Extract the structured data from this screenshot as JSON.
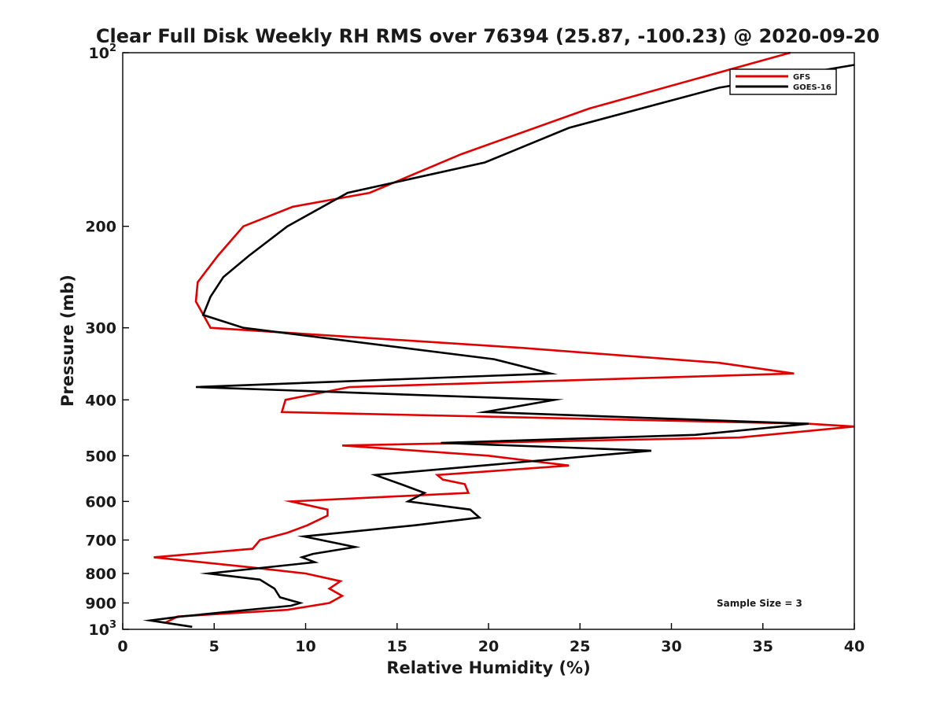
{
  "chart_data": {
    "type": "line",
    "title": "Clear Full Disk Weekly RH RMS over 76394 (25.87, -100.23) @ 2020-09-20",
    "xlabel": "Relative Humidity (%)",
    "ylabel": "Pressure (mb)",
    "xlim": [
      0,
      40
    ],
    "ylim": [
      100,
      1000
    ],
    "y_scale": "log",
    "y_inverted": true,
    "grid": false,
    "legend_position": "top-right",
    "x_ticks": [
      "0",
      "5",
      "10",
      "15",
      "20",
      "25",
      "30",
      "35",
      "40"
    ],
    "y_ticks": [
      {
        "value": 100,
        "label": "10",
        "sup": "2"
      },
      {
        "value": 200,
        "label": "200",
        "sup": ""
      },
      {
        "value": 300,
        "label": "300",
        "sup": ""
      },
      {
        "value": 400,
        "label": "400",
        "sup": ""
      },
      {
        "value": 500,
        "label": "500",
        "sup": ""
      },
      {
        "value": 600,
        "label": "600",
        "sup": ""
      },
      {
        "value": 700,
        "label": "700",
        "sup": ""
      },
      {
        "value": 800,
        "label": "800",
        "sup": ""
      },
      {
        "value": 900,
        "label": "900",
        "sup": ""
      },
      {
        "value": 1000,
        "label": "10",
        "sup": "3"
      }
    ],
    "series": [
      {
        "name": "GFS",
        "color": "#e00000",
        "points": [
          [
            36.5,
            100
          ],
          [
            25.5,
            125
          ],
          [
            18.5,
            150
          ],
          [
            13.5,
            175
          ],
          [
            9.3,
            185
          ],
          [
            6.6,
            200
          ],
          [
            5.2,
            225
          ],
          [
            4.1,
            250
          ],
          [
            4.0,
            270
          ],
          [
            4.8,
            300
          ],
          [
            21.8,
            325
          ],
          [
            32.6,
            345
          ],
          [
            36.7,
            360
          ],
          [
            12.4,
            380
          ],
          [
            8.9,
            400
          ],
          [
            8.7,
            420
          ],
          [
            37.5,
            440
          ],
          [
            40.0,
            445
          ],
          [
            33.7,
            465
          ],
          [
            12.0,
            480
          ],
          [
            20.0,
            500
          ],
          [
            24.4,
            520
          ],
          [
            17.2,
            540
          ],
          [
            17.5,
            550
          ],
          [
            18.7,
            560
          ],
          [
            18.9,
            580
          ],
          [
            9.2,
            600
          ],
          [
            11.2,
            620
          ],
          [
            11.2,
            635
          ],
          [
            10.1,
            660
          ],
          [
            9.0,
            680
          ],
          [
            7.5,
            700
          ],
          [
            7.1,
            725
          ],
          [
            1.7,
            750
          ],
          [
            6.9,
            780
          ],
          [
            10.0,
            800
          ],
          [
            11.9,
            825
          ],
          [
            11.3,
            850
          ],
          [
            12.0,
            875
          ],
          [
            11.3,
            900
          ],
          [
            9.0,
            925
          ],
          [
            3.0,
            950
          ],
          [
            2.3,
            975
          ]
        ]
      },
      {
        "name": "GOES-16",
        "color": "#000000",
        "points": [
          [
            40.0,
            105
          ],
          [
            32.6,
            115
          ],
          [
            24.4,
            135
          ],
          [
            19.8,
            155
          ],
          [
            12.3,
            175
          ],
          [
            9.0,
            200
          ],
          [
            6.9,
            225
          ],
          [
            5.5,
            245
          ],
          [
            4.8,
            265
          ],
          [
            4.4,
            285
          ],
          [
            6.6,
            300
          ],
          [
            20.3,
            340
          ],
          [
            23.4,
            360
          ],
          [
            4.0,
            380
          ],
          [
            23.6,
            400
          ],
          [
            19.8,
            420
          ],
          [
            37.5,
            440
          ],
          [
            31.3,
            460
          ],
          [
            17.4,
            475
          ],
          [
            28.9,
            490
          ],
          [
            13.8,
            540
          ],
          [
            15.2,
            560
          ],
          [
            16.5,
            580
          ],
          [
            15.6,
            600
          ],
          [
            19.0,
            620
          ],
          [
            19.5,
            640
          ],
          [
            16.0,
            660
          ],
          [
            9.9,
            690
          ],
          [
            12.7,
            720
          ],
          [
            10.4,
            740
          ],
          [
            9.8,
            750
          ],
          [
            10.5,
            765
          ],
          [
            4.7,
            800
          ],
          [
            7.5,
            820
          ],
          [
            8.3,
            850
          ],
          [
            8.6,
            880
          ],
          [
            9.7,
            900
          ],
          [
            9.2,
            910
          ],
          [
            5.4,
            935
          ],
          [
            3.2,
            950
          ],
          [
            1.5,
            965
          ],
          [
            3.8,
            990
          ]
        ]
      }
    ],
    "annotations": [
      "Sample Size = 3"
    ]
  }
}
